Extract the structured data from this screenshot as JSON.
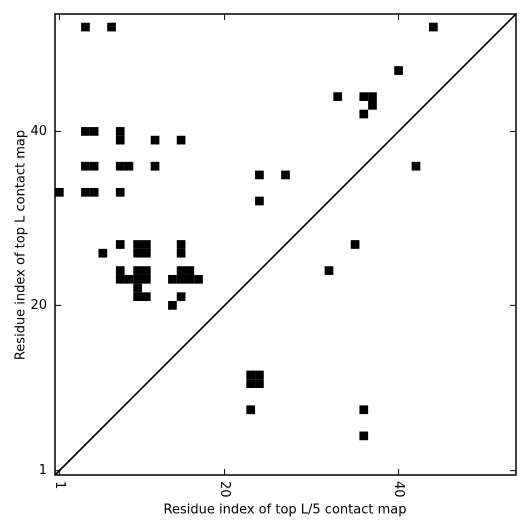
{
  "chart_data": {
    "type": "scatter",
    "xlabel": "Residue index of top L/5 contact map",
    "ylabel": "Residue index of top L contact map",
    "x": [
      4,
      7,
      44,
      40,
      33,
      36,
      37,
      37,
      36,
      42,
      35,
      32,
      24,
      27,
      24,
      1,
      4,
      5,
      8,
      8,
      12,
      15,
      4,
      5,
      8,
      9,
      12,
      4,
      5,
      8,
      8,
      6,
      10,
      11,
      10,
      11,
      15,
      15,
      8,
      8,
      9,
      10,
      11,
      10,
      11,
      10,
      10,
      11,
      14,
      15,
      15,
      16,
      14,
      15,
      16,
      17,
      23,
      24,
      23,
      24,
      23,
      36,
      36
    ],
    "values": [
      52,
      52,
      52,
      47,
      44,
      44,
      44,
      43,
      42,
      36,
      27,
      24,
      35,
      35,
      32,
      33,
      40,
      40,
      40,
      39,
      39,
      39,
      36,
      36,
      36,
      36,
      36,
      33,
      33,
      33,
      27,
      26,
      27,
      27,
      26,
      26,
      27,
      26,
      24,
      23,
      23,
      24,
      24,
      23,
      23,
      22,
      21,
      21,
      20,
      21,
      24,
      24,
      23,
      23,
      23,
      23,
      12,
      12,
      11,
      11,
      8,
      8,
      5
    ],
    "color": "#000000",
    "diagonal": true,
    "xlim": [
      0.5,
      53.5
    ],
    "ylim": [
      0.5,
      53.5
    ],
    "xticks": [
      1,
      20,
      40
    ],
    "yticks": [
      1,
      20,
      40
    ]
  }
}
